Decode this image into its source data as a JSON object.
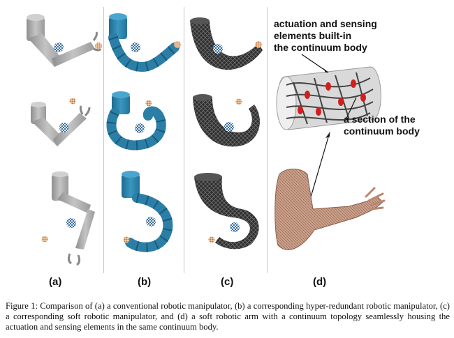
{
  "panels": {
    "a": "(a)",
    "b": "(b)",
    "c": "(c)",
    "d": "(d)"
  },
  "annotations": {
    "builtin": [
      "actuation and sensing",
      "elements built-in",
      "the continuum body"
    ],
    "section": [
      "a section of the",
      "continuum body"
    ]
  },
  "caption": "Figure 1: Comparison of (a) a conventional robotic manipulator, (b) a corresponding hyper-redundant robotic manipulator, (c) a corresponding soft robotic manipulator, and (d) a soft robotic arm with a continuum topology seamlessly housing the actuation and sensing elements in the same continuum body.",
  "colors": {
    "rigid": "#a9a9a9",
    "hyper": "#2b7fa6",
    "soft": "#3a3a3a",
    "skin": "#c9a089"
  }
}
